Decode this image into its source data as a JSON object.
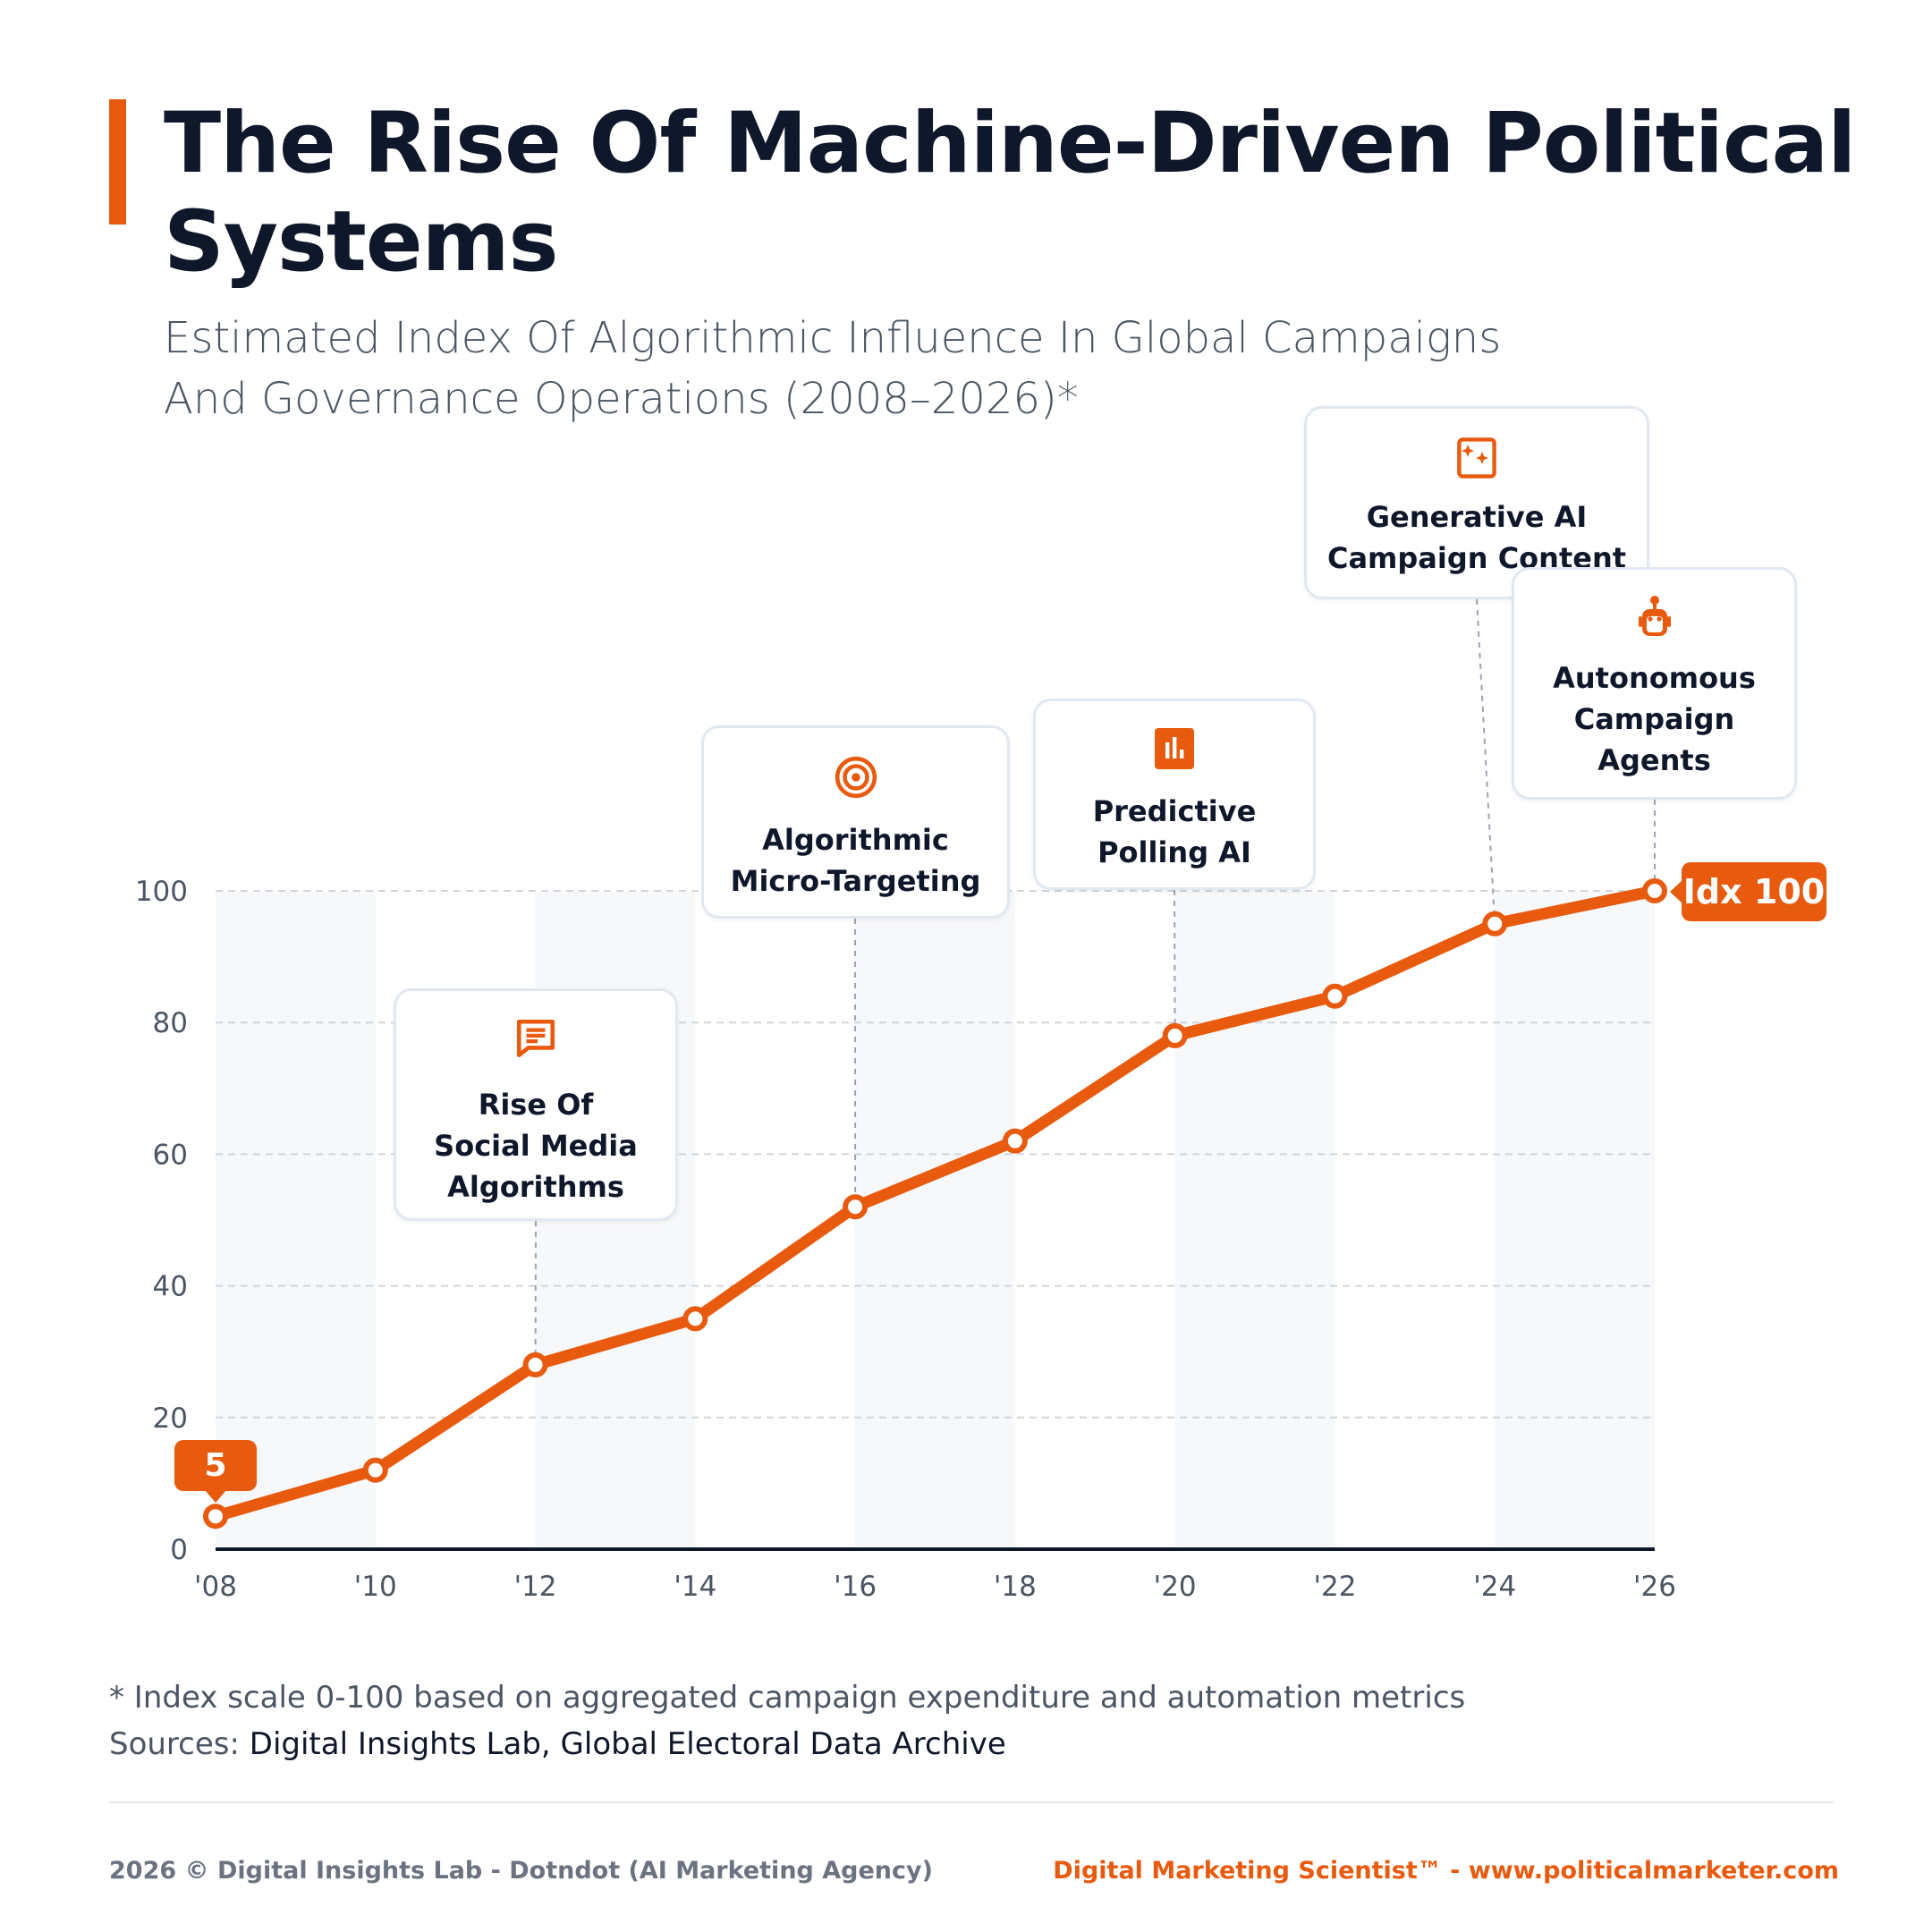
{
  "header": {
    "title": "The Rise Of Machine-Driven Political Systems",
    "subtitle": "Estimated Index Of Algorithmic Influence In Global Campaigns And Governance Operations (2008–2026)*"
  },
  "colors": {
    "accent": "#e85a0e",
    "text": "#0f172a",
    "muted": "#4b5563",
    "band": "#f7f8fa",
    "grid": "#d1d5db"
  },
  "chart_data": {
    "type": "line",
    "title": "The Rise Of Machine-Driven Political Systems",
    "subtitle": "Estimated Index Of Algorithmic Influence In Global Campaigns And Governance Operations (2008–2026)*",
    "xlabel": "",
    "ylabel": "",
    "x": [
      "'08",
      "'10",
      "'12",
      "'14",
      "'16",
      "'18",
      "'20",
      "'22",
      "'24",
      "'26"
    ],
    "values": [
      5,
      12,
      28,
      35,
      52,
      62,
      78,
      84,
      95,
      100
    ],
    "ylim": [
      0,
      100
    ],
    "yticks": [
      "0",
      "20",
      "40",
      "60",
      "80",
      "100"
    ],
    "grid": true,
    "legend": "none",
    "start_label": "5",
    "end_label": "Idx 100",
    "annotations": [
      {
        "x": "'12",
        "label": "Rise Of\nSocial Media\nAlgorithms",
        "icon": "chat-icon"
      },
      {
        "x": "'16",
        "label": "Algorithmic\nMicro-Targeting",
        "icon": "target-icon"
      },
      {
        "x": "'20",
        "label": "Predictive\nPolling AI",
        "icon": "bar-chart-icon"
      },
      {
        "x": "'24",
        "label": "Generative AI\nCampaign Content",
        "icon": "sparkle-image-icon"
      },
      {
        "x": "'26",
        "label": "Autonomous\nCampaign\nAgents",
        "icon": "robot-icon"
      }
    ]
  },
  "notes": {
    "footnote": "* Index scale 0-100 based on aggregated campaign expenditure and automation metrics",
    "sources_label": "Sources: ",
    "sources": "Digital Insights Lab, Global Electoral Data Archive"
  },
  "footer": {
    "left": "2026 © Digital Insights Lab - Dotndot (AI Marketing Agency)",
    "right": "Digital Marketing Scientist™ - www.politicalmarketer.com"
  }
}
